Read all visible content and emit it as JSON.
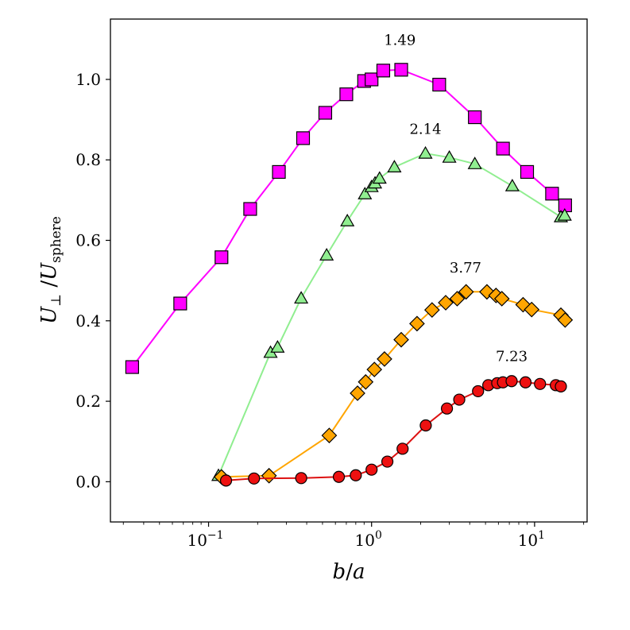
{
  "chart_data": {
    "type": "line",
    "xscale": "log",
    "xlim": [
      0.025,
      21
    ],
    "ylim": [
      -0.1,
      1.15
    ],
    "xlabel": "b/a",
    "ylabel": "U⊥/Usphere",
    "ylabel_parts": {
      "main": "U",
      "sub1": "⊥",
      "slash": " /",
      "main2": "U",
      "sub2": "sphere"
    },
    "xlabel_parts": {
      "num": "b",
      "slash": "/",
      "den": "a"
    },
    "xticks": [
      {
        "value": 0.1,
        "base": "10",
        "exp": "−1"
      },
      {
        "value": 1,
        "base": "10",
        "exp": "0"
      },
      {
        "value": 10,
        "base": "10",
        "exp": "1"
      }
    ],
    "yticks": [
      {
        "value": 0.0,
        "label": "0.0"
      },
      {
        "value": 0.2,
        "label": "0.2"
      },
      {
        "value": 0.4,
        "label": "0.4"
      },
      {
        "value": 0.6,
        "label": "0.6"
      },
      {
        "value": 0.8,
        "label": "0.8"
      },
      {
        "value": 1.0,
        "label": "1.0"
      }
    ],
    "series": [
      {
        "name": "magenta squares",
        "marker": "square",
        "line_color": "#ff00ff",
        "marker_color": "#ff00ff",
        "annotation": {
          "text": "1.49",
          "x": 1.49,
          "y": 1.086
        },
        "x": [
          0.034,
          0.067,
          0.12,
          0.18,
          0.27,
          0.38,
          0.52,
          0.7,
          0.9,
          1.0,
          1.18,
          1.52,
          2.6,
          4.3,
          6.4,
          9.0,
          12.8,
          15.4
        ],
        "y": [
          0.285,
          0.443,
          0.558,
          0.678,
          0.77,
          0.854,
          0.917,
          0.963,
          0.996,
          1.0,
          1.022,
          1.024,
          0.987,
          0.906,
          0.828,
          0.77,
          0.716,
          0.687
        ]
      },
      {
        "name": "green triangles",
        "marker": "triangle",
        "line_color": "#90ee90",
        "marker_color": "#90ee90",
        "annotation": {
          "text": "2.14",
          "x": 2.14,
          "y": 0.865
        },
        "x": [
          0.115,
          0.24,
          0.265,
          0.37,
          0.53,
          0.71,
          0.91,
          1.0,
          1.05,
          1.12,
          1.38,
          2.14,
          3.0,
          4.3,
          7.3,
          14.5,
          15.3
        ],
        "y": [
          0.015,
          0.321,
          0.334,
          0.456,
          0.563,
          0.648,
          0.715,
          0.733,
          0.742,
          0.754,
          0.782,
          0.816,
          0.806,
          0.79,
          0.735,
          0.658,
          0.662
        ]
      },
      {
        "name": "orange diamonds",
        "marker": "diamond",
        "line_color": "#ffa500",
        "marker_color": "#ffa500",
        "annotation": {
          "text": "3.77",
          "x": 3.77,
          "y": 0.52
        },
        "x": [
          0.12,
          0.235,
          0.55,
          0.82,
          0.92,
          1.04,
          1.2,
          1.52,
          1.9,
          2.35,
          2.85,
          3.35,
          3.8,
          5.1,
          5.8,
          6.3,
          8.5,
          9.6,
          14.5,
          15.4
        ],
        "y": [
          0.012,
          0.015,
          0.115,
          0.22,
          0.248,
          0.279,
          0.305,
          0.353,
          0.393,
          0.427,
          0.445,
          0.455,
          0.472,
          0.472,
          0.463,
          0.455,
          0.44,
          0.428,
          0.414,
          0.402
        ]
      },
      {
        "name": "red circles",
        "marker": "circle",
        "line_color": "#dd1111",
        "marker_color": "#ee1111",
        "annotation": {
          "text": "7.23",
          "x": 7.23,
          "y": 0.3
        },
        "x": [
          0.128,
          0.19,
          0.37,
          0.63,
          0.8,
          1.0,
          1.25,
          1.55,
          2.15,
          2.9,
          3.45,
          4.5,
          5.2,
          5.9,
          6.4,
          7.23,
          8.8,
          10.8,
          13.5,
          14.5
        ],
        "y": [
          0.003,
          0.008,
          0.009,
          0.012,
          0.016,
          0.03,
          0.05,
          0.082,
          0.14,
          0.182,
          0.204,
          0.225,
          0.24,
          0.245,
          0.247,
          0.25,
          0.247,
          0.243,
          0.24,
          0.237
        ]
      }
    ]
  }
}
